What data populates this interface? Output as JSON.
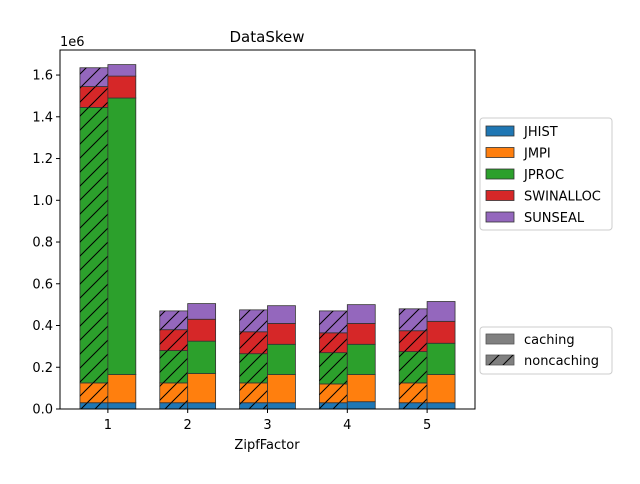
{
  "chart_data": {
    "type": "bar",
    "stacked": true,
    "title": "DataSkew",
    "xlabel": "ZipfFactor",
    "ylabel": "",
    "y_scale_label": "1e6",
    "ylim": [
      0,
      1720000
    ],
    "yticks": [
      0,
      200000,
      400000,
      600000,
      800000,
      1000000,
      1200000,
      1400000,
      1600000
    ],
    "ytick_labels": [
      "0.0",
      "0.2",
      "0.4",
      "0.6",
      "0.8",
      "1.0",
      "1.2",
      "1.4",
      "1.6"
    ],
    "categories": [
      "1",
      "2",
      "3",
      "4",
      "5"
    ],
    "grid": false,
    "legend_placement": "right, outside plot",
    "series": [
      {
        "name": "JHIST",
        "color": "#1f77b4",
        "noncaching": [
          30000,
          30000,
          30000,
          30000,
          30000
        ],
        "caching": [
          30000,
          30000,
          30000,
          35000,
          30000
        ]
      },
      {
        "name": "JMPI",
        "color": "#ff7f0e",
        "noncaching": [
          95000,
          95000,
          95000,
          90000,
          95000
        ],
        "caching": [
          135000,
          140000,
          135000,
          130000,
          135000
        ]
      },
      {
        "name": "JPROC",
        "color": "#2ca02c",
        "noncaching": [
          1320000,
          155000,
          140000,
          150000,
          150000
        ],
        "caching": [
          1325000,
          155000,
          145000,
          145000,
          150000
        ]
      },
      {
        "name": "SWINALLOC",
        "color": "#d62728",
        "noncaching": [
          100000,
          100000,
          105000,
          95000,
          100000
        ],
        "caching": [
          105000,
          105000,
          100000,
          100000,
          105000
        ]
      },
      {
        "name": "SUNSEAL",
        "color": "#9467bd",
        "noncaching": [
          90000,
          90000,
          105000,
          105000,
          105000
        ],
        "caching": [
          55000,
          75000,
          85000,
          90000,
          95000
        ]
      }
    ],
    "variant_legend": [
      {
        "label": "caching",
        "hatch": false
      },
      {
        "label": "noncaching",
        "hatch": true
      }
    ]
  }
}
